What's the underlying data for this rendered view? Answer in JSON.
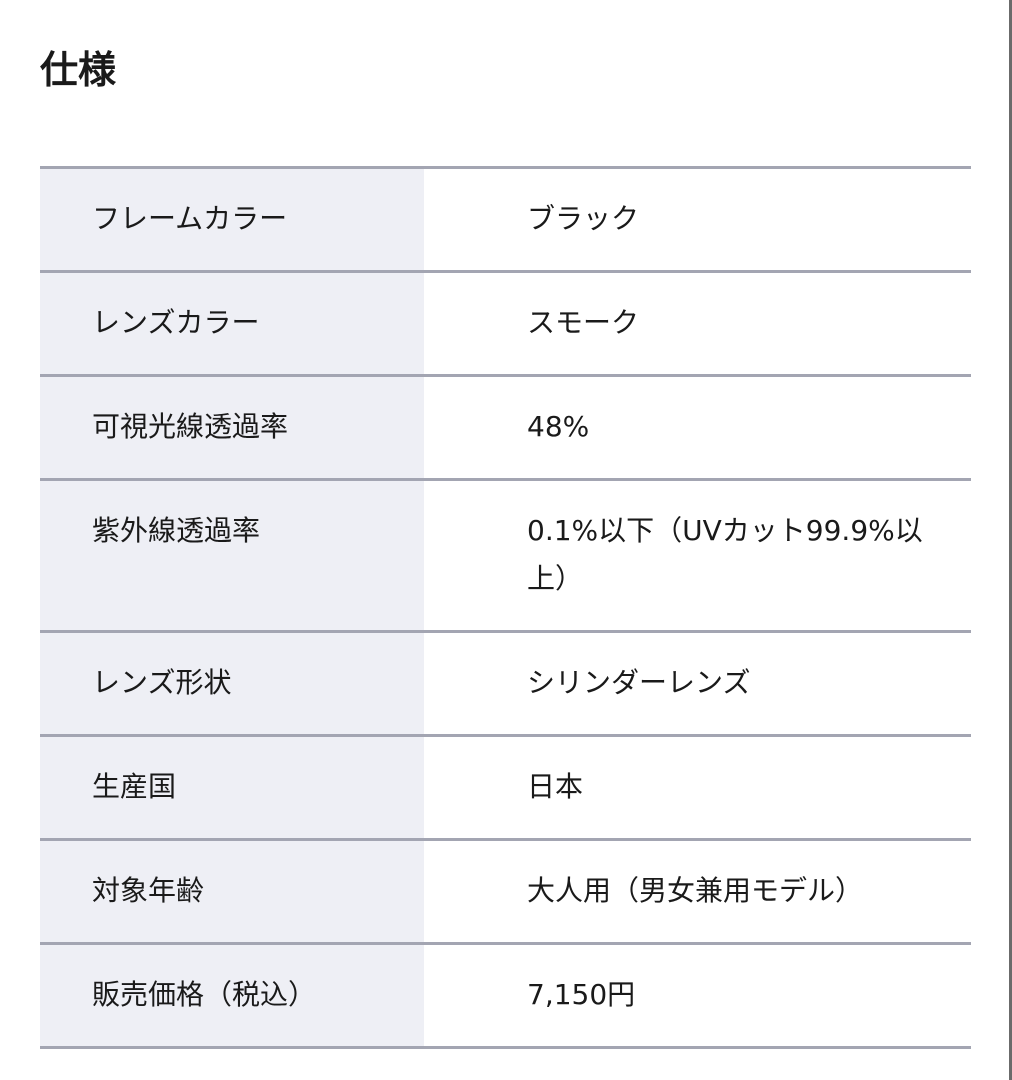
{
  "title": "仕様",
  "specs": [
    {
      "label": "フレームカラー",
      "value": "ブラック"
    },
    {
      "label": "レンズカラー",
      "value": "スモーク"
    },
    {
      "label": "可視光線透過率",
      "value": "48%"
    },
    {
      "label": "紫外線透過率",
      "value": "0.1%以下（UVカット99.9%以上）"
    },
    {
      "label": "レンズ形状",
      "value": "シリンダーレンズ"
    },
    {
      "label": "生産国",
      "value": "日本"
    },
    {
      "label": "対象年齢",
      "value": "大人用（男女兼用モデル）"
    },
    {
      "label": "販売価格（税込）",
      "value": "7,150円"
    }
  ]
}
